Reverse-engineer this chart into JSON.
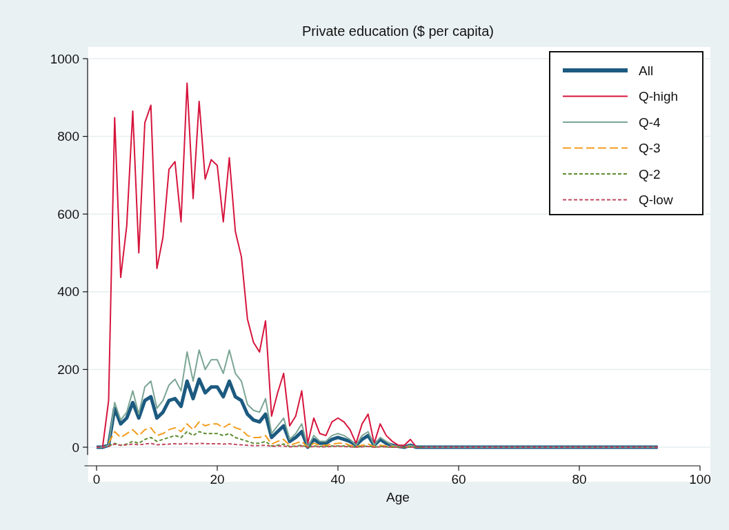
{
  "chart_data": {
    "type": "line",
    "title": "Private education ($ per capita)",
    "xlabel": "Age",
    "x": [
      0,
      1,
      2,
      3,
      4,
      5,
      6,
      7,
      8,
      9,
      10,
      11,
      12,
      13,
      14,
      15,
      16,
      17,
      18,
      19,
      20,
      21,
      22,
      23,
      24,
      25,
      26,
      27,
      28,
      29,
      30,
      31,
      32,
      33,
      34,
      35,
      36,
      37,
      38,
      39,
      40,
      41,
      42,
      43,
      44,
      45,
      46,
      47,
      48,
      49,
      50,
      51,
      52,
      53,
      54,
      55,
      56,
      57,
      58,
      59,
      60,
      61,
      62,
      63,
      64,
      65,
      66,
      67,
      68,
      69,
      70,
      71,
      72,
      73,
      74,
      75,
      76,
      77,
      78,
      79,
      80,
      81,
      82,
      83,
      84,
      85,
      86,
      87,
      88,
      89,
      90,
      91,
      92,
      93
    ],
    "xlim": [
      -2,
      100
    ],
    "xticks": [
      0,
      20,
      40,
      60,
      80,
      100
    ],
    "ylim": [
      -20,
      1000
    ],
    "yticks": [
      0,
      200,
      400,
      600,
      800,
      1000
    ],
    "grid": "y",
    "legend": "top right",
    "marker": "none",
    "series": [
      {
        "name": "All",
        "color": "#1c5a80",
        "line_style": "solid",
        "values": [
          0,
          0,
          5,
          100,
          60,
          75,
          115,
          75,
          120,
          130,
          75,
          90,
          120,
          125,
          105,
          170,
          125,
          175,
          140,
          155,
          155,
          130,
          170,
          130,
          120,
          85,
          70,
          65,
          85,
          25,
          40,
          55,
          15,
          25,
          40,
          0,
          20,
          10,
          10,
          20,
          25,
          20,
          15,
          5,
          20,
          30,
          5,
          20,
          10,
          5,
          2,
          0,
          5,
          0,
          0,
          0,
          0,
          0,
          0,
          0,
          0,
          0,
          0,
          0,
          0,
          0,
          0,
          0,
          0,
          0,
          0,
          0,
          0,
          0,
          0,
          0,
          0,
          0,
          0,
          0,
          0,
          0,
          0,
          0,
          0,
          0,
          0,
          0,
          0,
          0,
          0,
          0,
          0,
          0
        ]
      },
      {
        "name": "Q-high",
        "color": "#d6143c",
        "line_style": "solid",
        "values": [
          0,
          0,
          120,
          848,
          437,
          570,
          865,
          500,
          835,
          880,
          460,
          540,
          715,
          735,
          580,
          937,
          640,
          890,
          690,
          740,
          725,
          580,
          745,
          555,
          490,
          330,
          270,
          245,
          325,
          80,
          140,
          190,
          55,
          80,
          145,
          10,
          75,
          35,
          30,
          65,
          75,
          65,
          45,
          10,
          60,
          85,
          10,
          60,
          30,
          15,
          5,
          5,
          20,
          0,
          0,
          null,
          null,
          null,
          null,
          null,
          null,
          null,
          null,
          null,
          null,
          null,
          null,
          null,
          null,
          null,
          null,
          null,
          null,
          null,
          null,
          null,
          null,
          null,
          null,
          null,
          null,
          null,
          null,
          null,
          null,
          null,
          null,
          null,
          null,
          null,
          null,
          null,
          null,
          null
        ]
      },
      {
        "name": "Q-4",
        "color": "#7aa594",
        "line_style": "solid",
        "values": [
          0,
          0,
          5,
          115,
          70,
          90,
          145,
          85,
          155,
          170,
          100,
          120,
          160,
          175,
          145,
          245,
          170,
          250,
          200,
          225,
          225,
          190,
          250,
          190,
          170,
          110,
          95,
          90,
          125,
          35,
          55,
          75,
          20,
          35,
          60,
          0,
          30,
          15,
          15,
          30,
          35,
          30,
          20,
          5,
          30,
          40,
          5,
          25,
          15,
          5,
          2,
          0,
          5,
          0,
          0,
          0,
          0,
          0,
          0,
          0,
          0,
          0,
          0,
          0,
          0,
          0,
          0,
          0,
          0,
          0,
          0,
          0,
          0,
          0,
          0,
          0,
          0,
          0,
          0,
          0,
          0,
          0,
          0,
          0,
          0,
          0,
          0,
          0,
          0,
          0,
          0,
          0,
          0,
          0
        ]
      },
      {
        "name": "Q-3",
        "color": "#f39c1c",
        "line_style": "longdash",
        "values": [
          null,
          null,
          10,
          40,
          25,
          35,
          45,
          30,
          45,
          50,
          30,
          35,
          45,
          50,
          40,
          60,
          45,
          65,
          55,
          60,
          60,
          50,
          60,
          50,
          45,
          30,
          25,
          25,
          30,
          8,
          15,
          20,
          5,
          10,
          15,
          0,
          10,
          5,
          5,
          8,
          10,
          10,
          5,
          2,
          5,
          8,
          2,
          5,
          3,
          2,
          0,
          0,
          2,
          null,
          null,
          null,
          null,
          null,
          null,
          null,
          null,
          null,
          null,
          null,
          null,
          null,
          null,
          null,
          null,
          null,
          null,
          null,
          null,
          null,
          null,
          null,
          null,
          null,
          null,
          null,
          null,
          null,
          null,
          null,
          null,
          null,
          null,
          null,
          null,
          null,
          null,
          null,
          null,
          null
        ]
      },
      {
        "name": "Q-2",
        "color": "#5c8c2e",
        "line_style": "dashed",
        "values": [
          null,
          null,
          3,
          10,
          5,
          8,
          15,
          10,
          20,
          25,
          15,
          20,
          25,
          30,
          25,
          40,
          30,
          40,
          35,
          35,
          35,
          30,
          35,
          25,
          20,
          15,
          10,
          10,
          15,
          3,
          5,
          8,
          2,
          3,
          5,
          0,
          3,
          2,
          2,
          3,
          3,
          3,
          2,
          0,
          2,
          3,
          0,
          2,
          1,
          0,
          0,
          0,
          0,
          0,
          0,
          null,
          null,
          null,
          null,
          null,
          null,
          null,
          null,
          null,
          null,
          null,
          null,
          null,
          null,
          null,
          null,
          null,
          null,
          null,
          null,
          null,
          null,
          null,
          null,
          null,
          null,
          null,
          null,
          null,
          null,
          null,
          null,
          null,
          null,
          null,
          null,
          null,
          null,
          null
        ]
      },
      {
        "name": "Q-low",
        "color": "#c04a5e",
        "line_style": "dashed",
        "values": [
          0,
          0,
          2,
          8,
          5,
          6,
          8,
          6,
          8,
          10,
          6,
          7,
          8,
          9,
          8,
          10,
          8,
          10,
          9,
          9,
          9,
          8,
          9,
          7,
          6,
          5,
          4,
          4,
          5,
          2,
          3,
          3,
          1,
          2,
          3,
          0,
          2,
          1,
          1,
          2,
          2,
          2,
          1,
          0,
          1,
          2,
          0,
          1,
          1,
          0,
          0,
          0,
          0,
          0,
          0,
          0,
          0,
          0,
          0,
          0,
          0,
          0,
          0,
          0,
          0,
          0,
          0,
          0,
          0,
          0,
          0,
          0,
          0,
          0,
          0,
          0,
          0,
          0,
          0,
          0,
          0,
          0,
          0,
          0,
          0,
          0,
          0,
          0,
          0,
          0,
          0,
          0,
          0,
          0
        ]
      }
    ]
  }
}
